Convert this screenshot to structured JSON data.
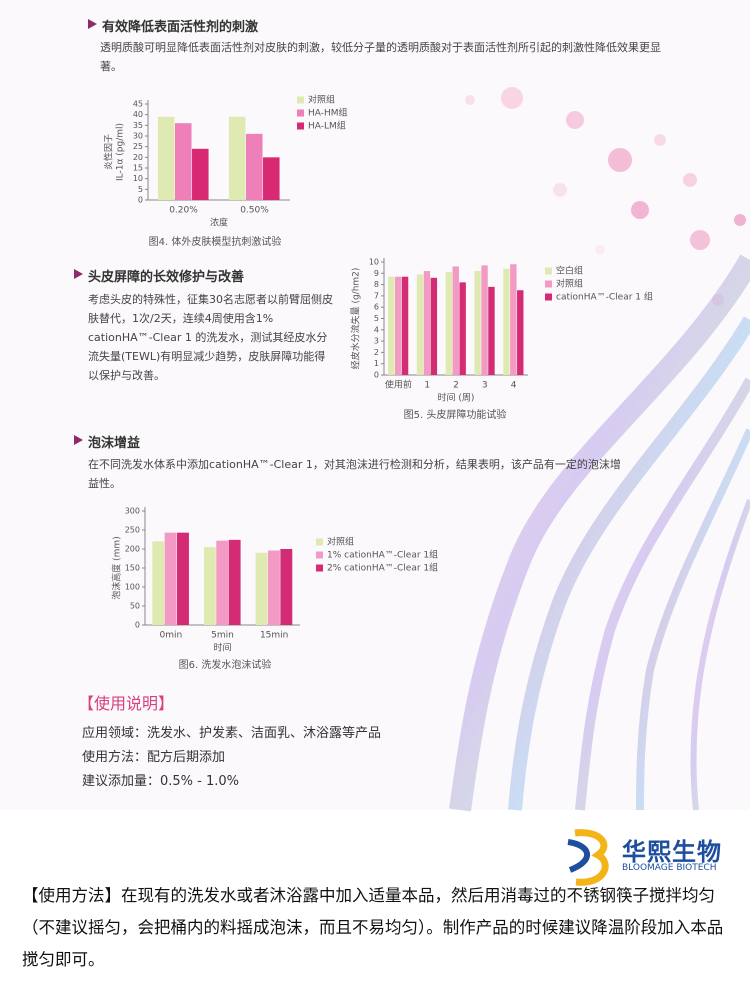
{
  "sections": [
    {
      "heading": "有效降低表面活性剂的刺激",
      "body": "透明质酸可明显降低表面活性剂对皮肤的刺激，较低分子量的透明质酸对于表面活性剂所引起的刺激性降低效果更显著。"
    },
    {
      "heading": "头皮屏障的长效修护与改善",
      "body": "考虑头皮的特殊性，征集30名志愿者以前臂屈侧皮肤替代，1次/2天，连续4周使用含1% cationHA™-Clear 1 的洗发水，测试其经皮水分流失量(TEWL)有明显减少趋势，皮肤屏障功能得以保护与改善。"
    },
    {
      "heading": "泡沫增益",
      "body": "在不同洗发水体系中添加cationHA™-Clear 1，对其泡沫进行检测和分析，结果表明，该产品有一定的泡沫增益性。"
    }
  ],
  "chart_data": [
    {
      "type": "bar",
      "caption": "图4. 体外皮肤模型抗刺激试验",
      "xlabel": "浓度",
      "ylabel": [
        "炎性因子",
        "IL-1α (pg/ml)"
      ],
      "categories": [
        "0.20%",
        "0.50%"
      ],
      "ylim": [
        0,
        45
      ],
      "yticks": [
        0,
        5,
        10,
        15,
        20,
        25,
        30,
        35,
        40,
        45
      ],
      "series": [
        {
          "name": "对照组",
          "color": "#dfeab2",
          "values": [
            39,
            39
          ]
        },
        {
          "name": "HA-HM组",
          "color": "#ee7fb8",
          "values": [
            36,
            31
          ]
        },
        {
          "name": "HA-LM组",
          "color": "#d82a72",
          "values": [
            24,
            20
          ]
        }
      ]
    },
    {
      "type": "bar",
      "caption": "图5. 头皮屏障功能试验",
      "xlabel": "时间 (周)",
      "ylabel": [
        "经皮水分流失量 (g/hm2)"
      ],
      "categories": [
        "使用前",
        "1",
        "2",
        "3",
        "4"
      ],
      "ylim": [
        0,
        10
      ],
      "yticks": [
        0,
        1,
        2,
        3,
        4,
        5,
        6,
        7,
        8,
        9,
        10
      ],
      "series": [
        {
          "name": "空白组",
          "color": "#dfeab2",
          "values": [
            8.7,
            8.9,
            9.1,
            9.2,
            9.4
          ]
        },
        {
          "name": "对照组",
          "color": "#f29ac3",
          "values": [
            8.7,
            9.2,
            9.6,
            9.7,
            9.8
          ]
        },
        {
          "name": "cationHA™-Clear 1 组",
          "color": "#d42c74",
          "values": [
            8.7,
            8.6,
            8.2,
            7.8,
            7.5
          ]
        }
      ]
    },
    {
      "type": "bar",
      "caption": "图6. 洗发水泡沫试验",
      "xlabel": "时间",
      "ylabel": [
        "泡沫高度 (mm)"
      ],
      "categories": [
        "0min",
        "5min",
        "15min"
      ],
      "ylim": [
        0,
        300
      ],
      "yticks": [
        0,
        50,
        100,
        150,
        200,
        250,
        300
      ],
      "series": [
        {
          "name": "对照组",
          "color": "#dfeab2",
          "values": [
            220,
            205,
            190
          ]
        },
        {
          "name": "1% cationHA™-Clear 1组",
          "color": "#f29ac3",
          "values": [
            243,
            222,
            196
          ]
        },
        {
          "name": "2% cationHA™-Clear 1组",
          "color": "#d42c74",
          "values": [
            243,
            224,
            200
          ]
        }
      ]
    }
  ],
  "usage": {
    "title": "【使用说明】",
    "lines": [
      "应用领域：洗发水、护发素、洁面乳、沐浴露等产品",
      "使用方法：配方后期添加",
      "建议添加量：0.5% - 1.0%"
    ]
  },
  "logo": {
    "name": "华熙生物",
    "english": "BLOOMAGE BIOTECH"
  },
  "footer": "【使用方法】在现有的洗发水或者沐浴露中加入适量本品，然后用消毒过的不锈钢筷子搅拌均匀（不建议摇匀，会把桶内的料摇成泡沫，而且不易均匀）。制作产品的时候建议降温阶段加入本品搅匀即可。"
}
